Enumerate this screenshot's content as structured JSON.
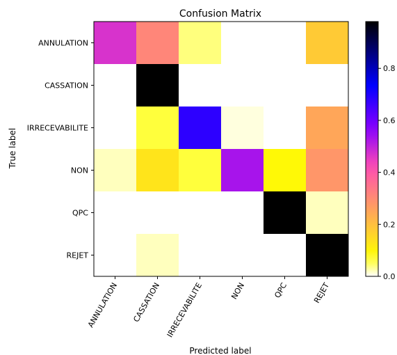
{
  "chart_data": {
    "type": "heatmap",
    "title": "Confusion Matrix",
    "xlabel": "Predicted label",
    "ylabel": "True label",
    "x_categories": [
      "ANNULATION",
      "CASSATION",
      "IRRECEVABILITE",
      "NON",
      "QPC",
      "REJET"
    ],
    "y_categories": [
      "ANNULATION",
      "CASSATION",
      "IRRECEVABILITE",
      "NON",
      "QPC",
      "REJET"
    ],
    "values": [
      [
        0.47,
        0.31,
        0.04,
        0.0,
        0.0,
        0.18
      ],
      [
        0.0,
        1.0,
        0.0,
        0.0,
        0.0,
        0.0
      ],
      [
        0.0,
        0.06,
        0.68,
        0.01,
        0.0,
        0.25
      ],
      [
        0.02,
        0.13,
        0.06,
        0.53,
        0.09,
        0.28
      ],
      [
        0.0,
        0.0,
        0.0,
        0.0,
        0.98,
        0.02
      ],
      [
        0.0,
        0.02,
        0.0,
        0.0,
        0.0,
        0.98
      ]
    ],
    "colormap": "gnuplot2_r",
    "colorbar": {
      "range": [
        0.0,
        0.98
      ],
      "ticks": [
        0.0,
        0.2,
        0.4,
        0.6,
        0.8
      ],
      "tick_labels": [
        "0.0",
        "0.2",
        "0.4",
        "0.6",
        "0.8"
      ]
    },
    "grid": false
  }
}
